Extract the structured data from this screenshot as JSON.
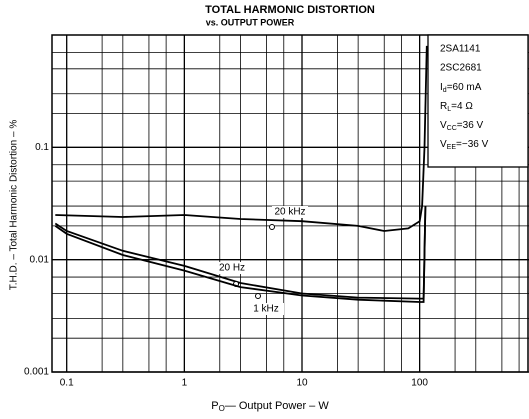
{
  "chart_data": {
    "type": "line",
    "title": "TOTAL HARMONIC DISTORTION",
    "subtitle": "vs. OUTPUT POWER",
    "x_label": [
      "P",
      "O",
      "— Output Power – W"
    ],
    "y_label": "T.H.D. – Total Harmonic Distortion – %",
    "xlog": true,
    "ylog": true,
    "grid": true,
    "xlim": [
      0.075,
      850
    ],
    "ylim": [
      0.001,
      1
    ],
    "xticks": [
      0.1,
      1,
      10,
      100
    ],
    "yticks": [
      0.001,
      0.01,
      0.1
    ],
    "x_minor_ticks": [
      0.2,
      0.3,
      0.5,
      0.7,
      2,
      3,
      5,
      7,
      20,
      30,
      50,
      70,
      200,
      300,
      500,
      700
    ],
    "y_minor_ticks": [
      0.002,
      0.003,
      0.005,
      0.007,
      0.02,
      0.03,
      0.05,
      0.07,
      0.2,
      0.3,
      0.5,
      0.7
    ],
    "color": "#000000",
    "series": [
      {
        "name": "20 kHz",
        "x": [
          0.08,
          0.3,
          1,
          3,
          10,
          30,
          50,
          80,
          100,
          105,
          110,
          115
        ],
        "values": [
          0.025,
          0.024,
          0.025,
          0.023,
          0.022,
          0.02,
          0.018,
          0.019,
          0.022,
          0.03,
          0.1,
          0.8
        ]
      },
      {
        "name": "20 Hz",
        "x": [
          0.08,
          0.1,
          0.3,
          1,
          3,
          10,
          30,
          100,
          108,
          112
        ],
        "values": [
          0.021,
          0.018,
          0.012,
          0.0088,
          0.0062,
          0.005,
          0.0046,
          0.0045,
          0.0045,
          0.03
        ]
      },
      {
        "name": "1 kHz",
        "x": [
          0.08,
          0.1,
          0.3,
          1,
          3,
          10,
          30,
          100,
          108,
          112
        ],
        "values": [
          0.02,
          0.017,
          0.011,
          0.008,
          0.0057,
          0.0048,
          0.0044,
          0.0042,
          0.0042,
          0.03
        ]
      }
    ],
    "info_box": [
      "2SA1141",
      "2SC2681",
      [
        "I",
        "d",
        "=60 mA"
      ],
      [
        "R",
        "L",
        "=4 Ω"
      ],
      [
        "V",
        "CC",
        "=36 V"
      ],
      [
        "V",
        "EE",
        "=−36 V"
      ]
    ]
  }
}
